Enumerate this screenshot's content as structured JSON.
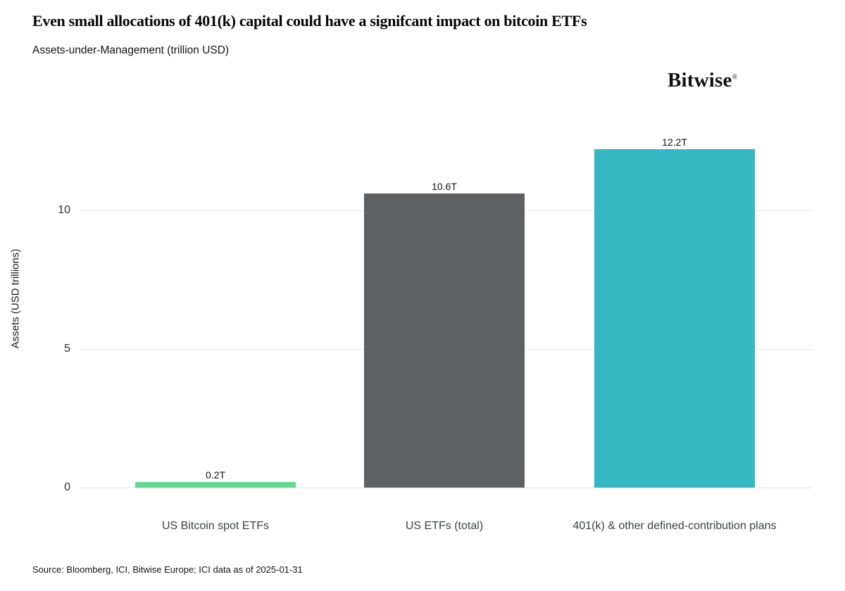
{
  "header": {
    "title": "Even small allocations of 401(k) capital could have a signifcant impact on bitcoin ETFs",
    "subtitle": "Assets-under-Management (trillion USD)"
  },
  "logo": {
    "text": "Bitwise",
    "mark": "®"
  },
  "source": "Source: Bloomberg, ICI, Bitwise Europe; ICI data as of 2025-01-31",
  "chart_data": {
    "type": "bar",
    "title": "Even small allocations of 401(k) capital could have a signifcant impact on bitcoin ETFs",
    "subtitle": "Assets-under-Management (trillion USD)",
    "ylabel": "Assets (USD trillions)",
    "xlabel": "",
    "categories": [
      "US Bitcoin spot ETFs",
      "US ETFs (total)",
      "401(k) & other defined-contribution plans"
    ],
    "values": [
      0.2,
      10.6,
      12.2
    ],
    "value_labels": [
      "0.2T",
      "10.6T",
      "12.2T"
    ],
    "bar_colors": [
      "#63da8e",
      "#5d6164",
      "#35b7c2"
    ],
    "yticks": [
      0,
      5,
      10
    ],
    "ylim": [
      0,
      12.65
    ],
    "grid": "horizontal-only",
    "legend": "none"
  },
  "colors": {
    "background": "#ffffff",
    "grid": "#e2e2e2",
    "green_bar": "#63da8e",
    "gray_bar": "#5d6164",
    "teal_bar": "#35b7c2",
    "text": "#111111"
  }
}
